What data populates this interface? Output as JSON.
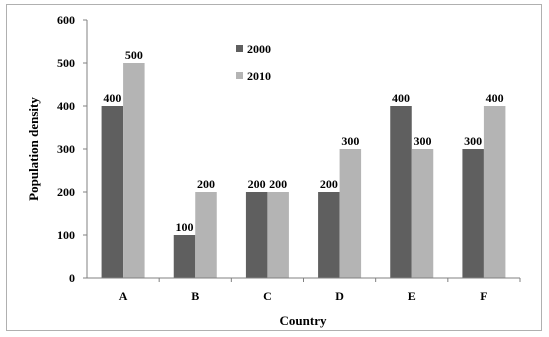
{
  "chart_data": {
    "type": "bar",
    "categories": [
      "A",
      "B",
      "C",
      "D",
      "E",
      "F"
    ],
    "series": [
      {
        "name": "2000",
        "values": [
          400,
          100,
          200,
          200,
          400,
          300
        ],
        "color": "#5f5f5f"
      },
      {
        "name": "2010",
        "values": [
          500,
          200,
          200,
          300,
          300,
          400
        ],
        "color": "#b4b4b4"
      }
    ],
    "xlabel": "Country",
    "ylabel": "Population density",
    "ylim": [
      0,
      600
    ],
    "yticks": [
      0,
      100,
      200,
      300,
      400,
      500,
      600
    ],
    "grid": false,
    "legend_position": "top-center",
    "data_labels": true
  }
}
